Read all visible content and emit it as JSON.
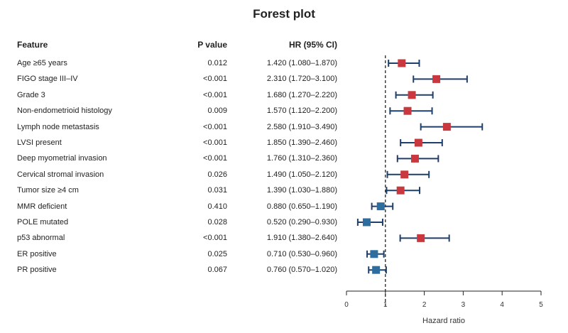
{
  "chart_data": {
    "type": "forest",
    "title": "Forest plot",
    "columns": {
      "feature": "Feature",
      "p_value": "P value",
      "hr_ci": "HR (95% CI)"
    },
    "xlabel": "Hazard ratio",
    "xlim": [
      0,
      5
    ],
    "xticks": [
      0,
      1,
      2,
      3,
      4,
      5
    ],
    "reference_line": 1,
    "colors": {
      "risk": "#c8383e",
      "protective": "#2e6e9e",
      "whisker": "#1f3f6b",
      "line": "#222222"
    },
    "rows": [
      {
        "feature": "Age ≥65 years",
        "p": "0.012",
        "ci_text": "1.420 (1.080–1.870)",
        "hr": 1.42,
        "lo": 1.08,
        "hi": 1.87
      },
      {
        "feature": "FIGO stage III–IV",
        "p": "<0.001",
        "ci_text": "2.310 (1.720–3.100)",
        "hr": 2.31,
        "lo": 1.72,
        "hi": 3.1
      },
      {
        "feature": "Grade 3",
        "p": "<0.001",
        "ci_text": "1.680 (1.270–2.220)",
        "hr": 1.68,
        "lo": 1.27,
        "hi": 2.22
      },
      {
        "feature": "Non-endometrioid histology",
        "p": "0.009",
        "ci_text": "1.570 (1.120–2.200)",
        "hr": 1.57,
        "lo": 1.12,
        "hi": 2.2
      },
      {
        "feature": "Lymph node metastasis",
        "p": "<0.001",
        "ci_text": "2.580 (1.910–3.490)",
        "hr": 2.58,
        "lo": 1.91,
        "hi": 3.49
      },
      {
        "feature": "LVSI present",
        "p": "<0.001",
        "ci_text": "1.850 (1.390–2.460)",
        "hr": 1.85,
        "lo": 1.39,
        "hi": 2.46
      },
      {
        "feature": "Deep myometrial invasion",
        "p": "<0.001",
        "ci_text": "1.760 (1.310–2.360)",
        "hr": 1.76,
        "lo": 1.31,
        "hi": 2.36
      },
      {
        "feature": "Cervical stromal invasion",
        "p": "0.026",
        "ci_text": "1.490 (1.050–2.120)",
        "hr": 1.49,
        "lo": 1.05,
        "hi": 2.12
      },
      {
        "feature": "Tumor size ≥4 cm",
        "p": "0.031",
        "ci_text": "1.390 (1.030–1.880)",
        "hr": 1.39,
        "lo": 1.03,
        "hi": 1.88
      },
      {
        "feature": "MMR deficient",
        "p": "0.410",
        "ci_text": "0.880 (0.650–1.190)",
        "hr": 0.88,
        "lo": 0.65,
        "hi": 1.19
      },
      {
        "feature": "POLE mutated",
        "p": "0.028",
        "ci_text": "0.520 (0.290–0.930)",
        "hr": 0.52,
        "lo": 0.29,
        "hi": 0.93
      },
      {
        "feature": "p53 abnormal",
        "p": "<0.001",
        "ci_text": "1.910 (1.380–2.640)",
        "hr": 1.91,
        "lo": 1.38,
        "hi": 2.64
      },
      {
        "feature": "ER positive",
        "p": "0.025",
        "ci_text": "0.710 (0.530–0.960)",
        "hr": 0.71,
        "lo": 0.53,
        "hi": 0.96
      },
      {
        "feature": "PR positive",
        "p": "0.067",
        "ci_text": "0.760 (0.570–1.020)",
        "hr": 0.76,
        "lo": 0.57,
        "hi": 1.02
      }
    ]
  }
}
